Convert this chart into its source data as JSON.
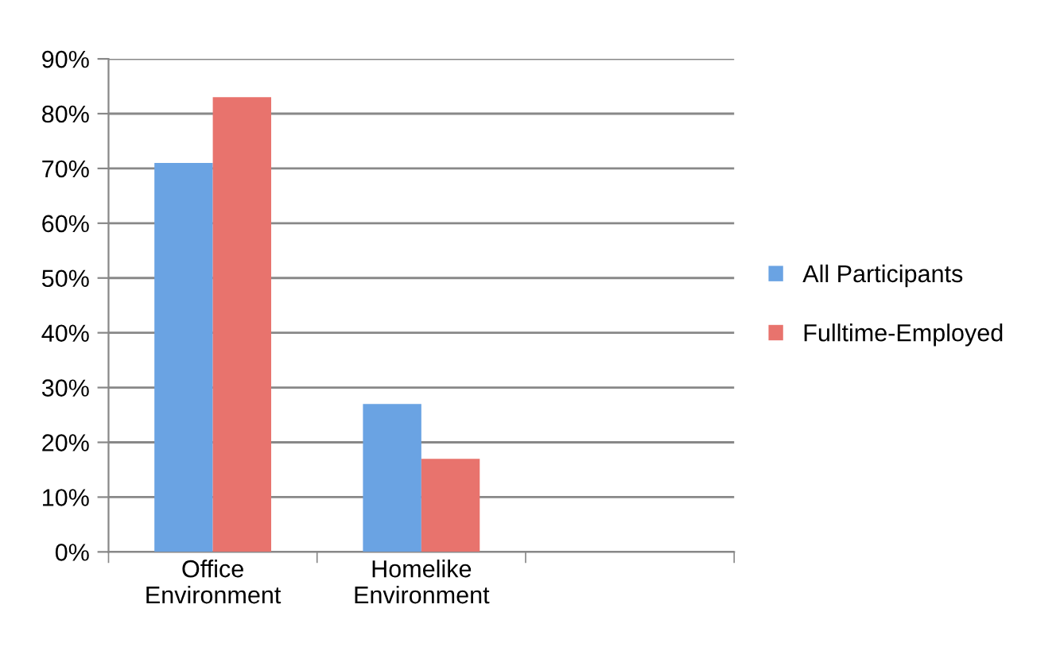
{
  "chart_data": {
    "type": "bar",
    "categories": [
      "Office\nEnvironment",
      "Homelike\nEnvironment",
      null
    ],
    "series": [
      {
        "name": "All Participants",
        "color": "#6aa3e3",
        "values": [
          71,
          27,
          null
        ]
      },
      {
        "name": "Fulltime-Employed",
        "color": "#e8736d",
        "values": [
          83,
          17,
          null
        ]
      }
    ],
    "ylim": [
      0,
      90
    ],
    "yticks": [
      {
        "value": 0,
        "label": "0%"
      },
      {
        "value": 10,
        "label": "10%"
      },
      {
        "value": 20,
        "label": "20%"
      },
      {
        "value": 30,
        "label": "30%"
      },
      {
        "value": 40,
        "label": "40%"
      },
      {
        "value": 50,
        "label": "50%"
      },
      {
        "value": 60,
        "label": "60%"
      },
      {
        "value": 70,
        "label": "70%"
      },
      {
        "value": 80,
        "label": "80%"
      },
      {
        "value": 90,
        "label": "90%"
      }
    ],
    "grid": "y",
    "legend": "right"
  }
}
